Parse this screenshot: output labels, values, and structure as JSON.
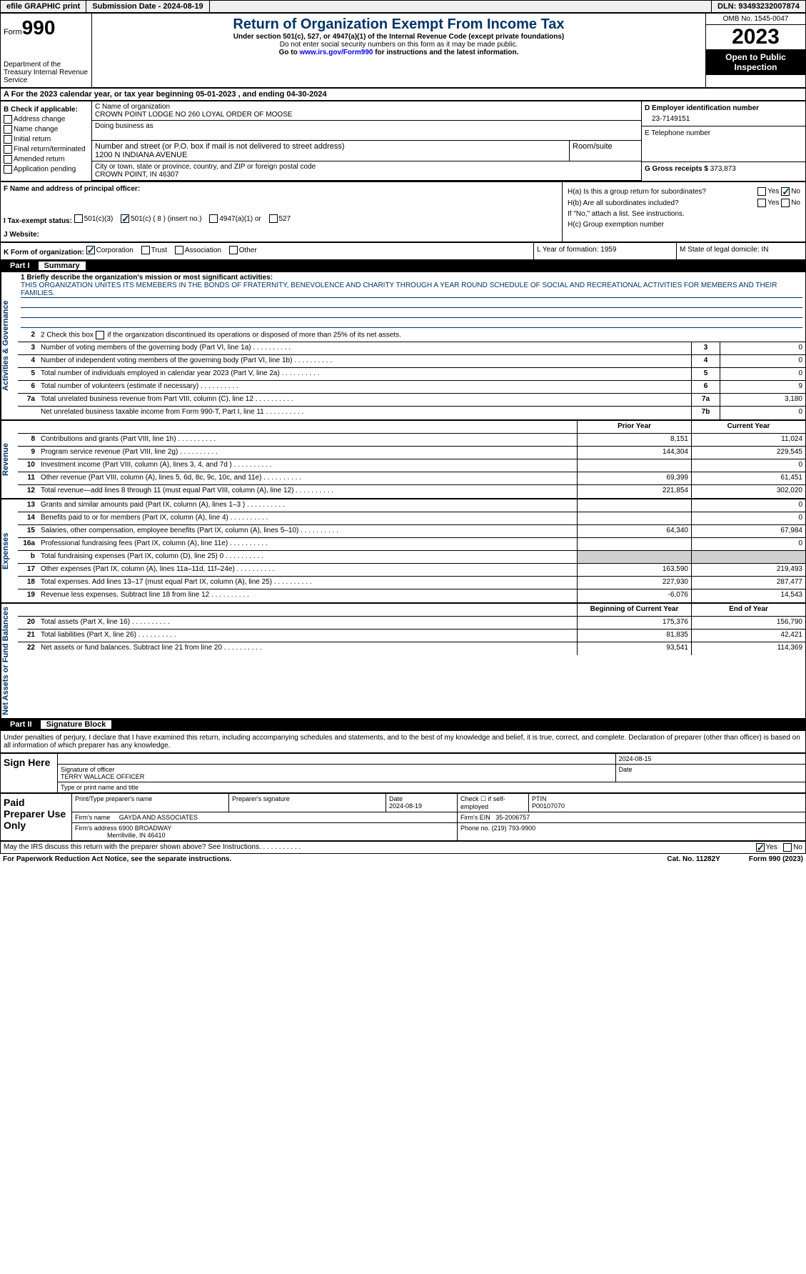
{
  "topbar": {
    "efile": "efile GRAPHIC print",
    "submission": "Submission Date - 2024-08-19",
    "dln": "DLN: 93493232007874"
  },
  "header": {
    "form_label": "Form",
    "form_no": "990",
    "dept": "Department of the Treasury Internal Revenue Service",
    "title": "Return of Organization Exempt From Income Tax",
    "subtitle": "Under section 501(c), 527, or 4947(a)(1) of the Internal Revenue Code (except private foundations)",
    "note1": "Do not enter social security numbers on this form as it may be made public.",
    "note2_pre": "Go to ",
    "note2_link": "www.irs.gov/Form990",
    "note2_post": " for instructions and the latest information.",
    "omb": "OMB No. 1545-0047",
    "year": "2023",
    "open": "Open to Public Inspection"
  },
  "rowA": "A  For the 2023 calendar year, or tax year beginning 05-01-2023   , and ending 04-30-2024",
  "colB": {
    "hdr": "B Check if applicable:",
    "items": [
      "Address change",
      "Name change",
      "Initial return",
      "Final return/terminated",
      "Amended return",
      "Application pending"
    ]
  },
  "colC": {
    "name_lbl": "C Name of organization",
    "name": "CROWN POINT LODGE NO 260 LOYAL ORDER OF MOOSE",
    "dba_lbl": "Doing business as",
    "dba": "",
    "street_lbl": "Number and street (or P.O. box if mail is not delivered to street address)",
    "street": "1200 N INDIANA AVENUE",
    "room_lbl": "Room/suite",
    "city_lbl": "City or town, state or province, country, and ZIP or foreign postal code",
    "city": "CROWN POINT, IN  46307"
  },
  "colD": {
    "ein_lbl": "D Employer identification number",
    "ein": "23-7149151",
    "tel_lbl": "E Telephone number",
    "tel": "",
    "gross_lbl": "G Gross receipts $",
    "gross": "373,873"
  },
  "rowF": {
    "f": "F  Name and address of principal officer:",
    "i": "I   Tax-exempt status:",
    "i_opts": {
      "501c3": "501(c)(3)",
      "501c": "501(c) ( 8 ) (insert no.)",
      "4947": "4947(a)(1) or",
      "527": "527"
    },
    "j": "J  Website:",
    "ha": "H(a)  Is this a group return for subordinates?",
    "hb": "H(b)  Are all subordinates included?",
    "hb_note": "If \"No,\" attach a list. See instructions.",
    "hc": "H(c)  Group exemption number",
    "yes": "Yes",
    "no": "No"
  },
  "rowK": {
    "k": "K Form of organization:",
    "corp": "Corporation",
    "trust": "Trust",
    "assoc": "Association",
    "other": "Other",
    "l": "L Year of formation: 1959",
    "m": "M State of legal domicile: IN"
  },
  "part1": {
    "label": "Part I",
    "name": "Summary"
  },
  "mission": {
    "q1": "1  Briefly describe the organization's mission or most significant activities:",
    "text": "THIS ORGANIZATION UNITES ITS MEMEBERS IN THE BONDS OF FRATERNITY, BENEVOLENCE AND CHARITY THROUGH A YEAR ROUND SCHEDULE OF SOCIAL AND RECREATIONAL ACTIVITIES FOR MEMBERS AND THEIR FAMILIES.",
    "q2_pre": "2   Check this box ",
    "q2_post": " if the organization discontinued its operations or disposed of more than 25% of its net assets."
  },
  "governance": [
    {
      "n": "3",
      "d": "Number of voting members of the governing body (Part VI, line 1a)",
      "b": "3",
      "v": "0"
    },
    {
      "n": "4",
      "d": "Number of independent voting members of the governing body (Part VI, line 1b)",
      "b": "4",
      "v": "0"
    },
    {
      "n": "5",
      "d": "Total number of individuals employed in calendar year 2023 (Part V, line 2a)",
      "b": "5",
      "v": "0"
    },
    {
      "n": "6",
      "d": "Total number of volunteers (estimate if necessary)",
      "b": "6",
      "v": "9"
    },
    {
      "n": "7a",
      "d": "Total unrelated business revenue from Part VIII, column (C), line 12",
      "b": "7a",
      "v": "3,180"
    },
    {
      "n": "",
      "d": "Net unrelated business taxable income from Form 990-T, Part I, line 11",
      "b": "7b",
      "v": "0"
    }
  ],
  "rev_hdr": {
    "p": "Prior Year",
    "c": "Current Year"
  },
  "revenue": [
    {
      "n": "8",
      "d": "Contributions and grants (Part VIII, line 1h)",
      "p": "8,151",
      "c": "11,024"
    },
    {
      "n": "9",
      "d": "Program service revenue (Part VIII, line 2g)",
      "p": "144,304",
      "c": "229,545"
    },
    {
      "n": "10",
      "d": "Investment income (Part VIII, column (A), lines 3, 4, and 7d )",
      "p": "",
      "c": "0"
    },
    {
      "n": "11",
      "d": "Other revenue (Part VIII, column (A), lines 5, 6d, 8c, 9c, 10c, and 11e)",
      "p": "69,399",
      "c": "61,451"
    },
    {
      "n": "12",
      "d": "Total revenue—add lines 8 through 11 (must equal Part VIII, column (A), line 12)",
      "p": "221,854",
      "c": "302,020"
    }
  ],
  "expenses": [
    {
      "n": "13",
      "d": "Grants and similar amounts paid (Part IX, column (A), lines 1–3 )",
      "p": "",
      "c": "0"
    },
    {
      "n": "14",
      "d": "Benefits paid to or for members (Part IX, column (A), line 4)",
      "p": "",
      "c": "0"
    },
    {
      "n": "15",
      "d": "Salaries, other compensation, employee benefits (Part IX, column (A), lines 5–10)",
      "p": "64,340",
      "c": "67,984"
    },
    {
      "n": "16a",
      "d": "Professional fundraising fees (Part IX, column (A), line 11e)",
      "p": "",
      "c": "0"
    },
    {
      "n": "b",
      "d": "Total fundraising expenses (Part IX, column (D), line 25) 0",
      "p": "shade",
      "c": "shade"
    },
    {
      "n": "17",
      "d": "Other expenses (Part IX, column (A), lines 11a–11d, 11f–24e)",
      "p": "163,590",
      "c": "219,493"
    },
    {
      "n": "18",
      "d": "Total expenses. Add lines 13–17 (must equal Part IX, column (A), line 25)",
      "p": "227,930",
      "c": "287,477"
    },
    {
      "n": "19",
      "d": "Revenue less expenses. Subtract line 18 from line 12",
      "p": "-6,076",
      "c": "14,543"
    }
  ],
  "net_hdr": {
    "p": "Beginning of Current Year",
    "c": "End of Year"
  },
  "netassets": [
    {
      "n": "20",
      "d": "Total assets (Part X, line 16)",
      "p": "175,376",
      "c": "156,790"
    },
    {
      "n": "21",
      "d": "Total liabilities (Part X, line 26)",
      "p": "81,835",
      "c": "42,421"
    },
    {
      "n": "22",
      "d": "Net assets or fund balances. Subtract line 21 from line 20",
      "p": "93,541",
      "c": "114,369"
    }
  ],
  "part2": {
    "label": "Part II",
    "name": "Signature Block"
  },
  "sig_text": "Under penalties of perjury, I declare that I have examined this return, including accompanying schedules and statements, and to the best of my knowledge and belief, it is true, correct, and complete. Declaration of preparer (other than officer) is based on all information of which preparer has any knowledge.",
  "sign": {
    "lbl": "Sign Here",
    "date": "2024-08-15",
    "sig_lbl": "Signature of officer",
    "name": "TERRY WALLACE  OFFICER",
    "type_lbl": "Type or print name and title",
    "date_lbl": "Date"
  },
  "paid": {
    "lbl": "Paid Preparer Use Only",
    "h1": "Print/Type preparer's name",
    "h2": "Preparer's signature",
    "h3": "Date",
    "h3v": "2024-08-19",
    "h4": "Check ☐ if self-employed",
    "h5": "PTIN",
    "ptin": "P00107070",
    "firm_lbl": "Firm's name",
    "firm": "GAYDA AND ASSOCIATES",
    "ein_lbl": "Firm's EIN",
    "ein": "35-2006757",
    "addr_lbl": "Firm's address",
    "addr": "6900 BROADWAY",
    "addr2": "Merrillville, IN  46410",
    "phone_lbl": "Phone no.",
    "phone": "(219) 793-9900"
  },
  "discuss": {
    "q": "May the IRS discuss this return with the preparer shown above? See Instructions.",
    "yes": "Yes",
    "no": "No"
  },
  "footer": {
    "l": "For Paperwork Reduction Act Notice, see the separate instructions.",
    "c": "Cat. No. 11282Y",
    "r": "Form 990 (2023)"
  },
  "vtabs": {
    "gov": "Activities & Governance",
    "rev": "Revenue",
    "exp": "Expenses",
    "net": "Net Assets or Fund Balances"
  }
}
